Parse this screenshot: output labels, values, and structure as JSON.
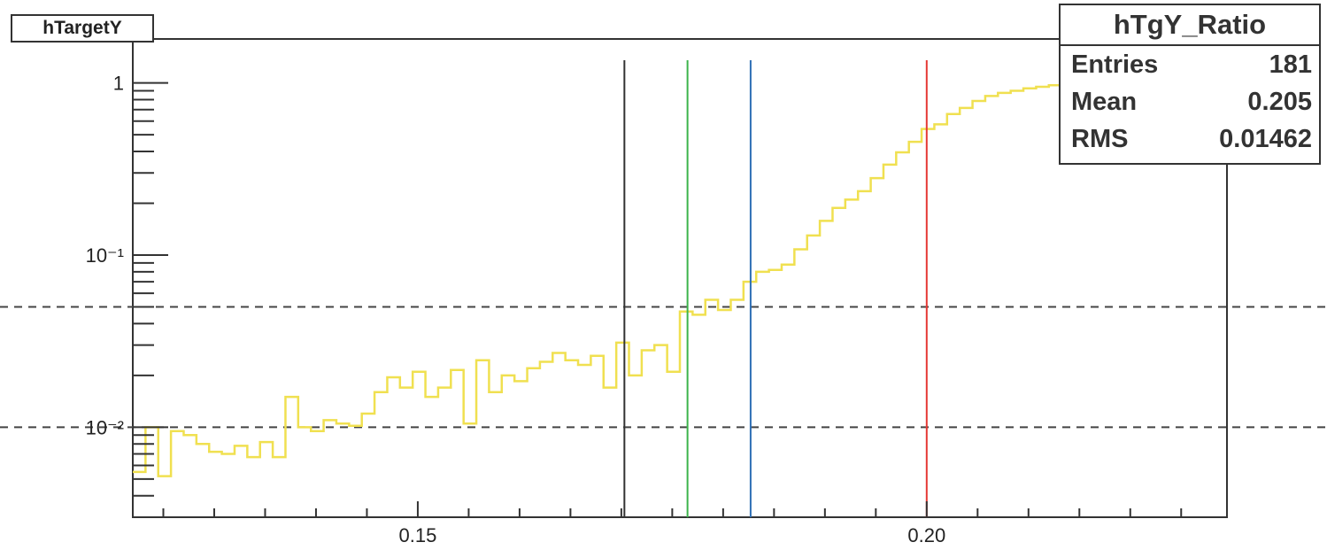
{
  "chart_data": {
    "type": "step-histogram",
    "title": "hTargetY",
    "x_range": [
      0.122,
      0.2295
    ],
    "y_range": [
      0.003,
      1.8
    ],
    "y_scale": "log",
    "x_ticks": [
      {
        "value": 0.15,
        "label": "0.15"
      },
      {
        "value": 0.2,
        "label": "0.20"
      }
    ],
    "y_ticks": [
      {
        "value": 1,
        "label": "1"
      },
      {
        "value": 0.1,
        "label": "10⁻¹"
      },
      {
        "value": 0.01,
        "label": "10⁻²"
      }
    ],
    "series": [
      {
        "color": "#f0e050",
        "bin_width": 0.00125,
        "bin_start": 0.122,
        "values": [
          0.0055,
          0.01,
          0.0052,
          0.0095,
          0.009,
          0.008,
          0.0072,
          0.007,
          0.0078,
          0.0067,
          0.0082,
          0.0067,
          0.015,
          0.01,
          0.0095,
          0.011,
          0.0105,
          0.0102,
          0.012,
          0.016,
          0.0195,
          0.017,
          0.021,
          0.015,
          0.017,
          0.0215,
          0.0105,
          0.0245,
          0.016,
          0.02,
          0.0185,
          0.022,
          0.024,
          0.027,
          0.0245,
          0.023,
          0.026,
          0.017,
          0.031,
          0.02,
          0.028,
          0.03,
          0.021,
          0.047,
          0.045,
          0.055,
          0.048,
          0.055,
          0.07,
          0.08,
          0.082,
          0.088,
          0.108,
          0.13,
          0.158,
          0.188,
          0.21,
          0.235,
          0.28,
          0.335,
          0.395,
          0.455,
          0.54,
          0.575,
          0.66,
          0.715,
          0.785,
          0.84,
          0.875,
          0.9,
          0.93,
          0.95,
          0.97,
          0.99,
          1.0,
          1.01,
          1.01,
          1.015,
          1.02,
          1.03,
          1.035,
          0.98
        ]
      }
    ],
    "vertical_lines": [
      {
        "x": 0.1703,
        "color": "#333333"
      },
      {
        "x": 0.1765,
        "color": "#3cb44b"
      },
      {
        "x": 0.1827,
        "color": "#2e6fb5"
      },
      {
        "x": 0.2,
        "color": "#e53935"
      }
    ],
    "dashed_lines": [
      {
        "y": 0.05
      },
      {
        "y": 0.01
      }
    ],
    "stats": {
      "title": "hTgY_Ratio",
      "rows": [
        {
          "label": "Entries",
          "value": "181"
        },
        {
          "label": "Mean",
          "value": "0.205"
        },
        {
          "label": "RMS",
          "value": "0.01462"
        }
      ]
    },
    "grid": false
  }
}
